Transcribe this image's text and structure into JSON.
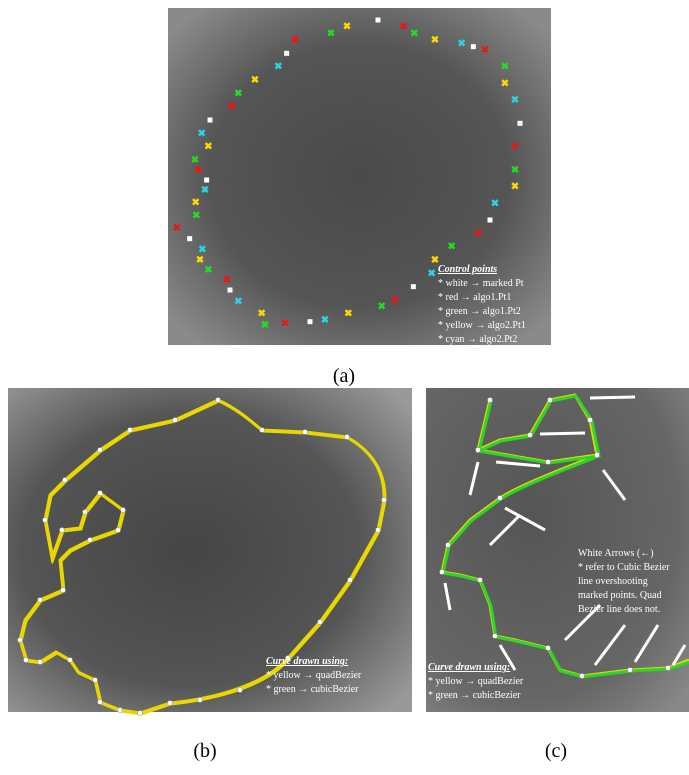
{
  "panels": [
    {
      "caption": "(a)",
      "legend": {
        "title": "Control points",
        "items": [
          "* white → marked Pt",
          "* red → algo1.Pt1",
          "* green → algo1.Pt2",
          "* yellow → algo2.Pt1",
          "* cyan → algo2.Pt2"
        ]
      }
    },
    {
      "caption": "(b)",
      "legend": {
        "title": "Curve drawn using:",
        "items": [
          "* yellow → quadBezier",
          "* green → cubicBezier"
        ]
      }
    },
    {
      "caption": "(c)",
      "note": {
        "title": "White Arrows (←)",
        "lines": [
          "* refer to Cubic Bezier",
          "line overshooting",
          "marked points.  Quad",
          "Bezier line does  not."
        ]
      },
      "legend": {
        "title": "Curve drawn using:",
        "items": [
          "* yellow → quadBezier",
          "* green → cubicBezier"
        ]
      }
    }
  ]
}
